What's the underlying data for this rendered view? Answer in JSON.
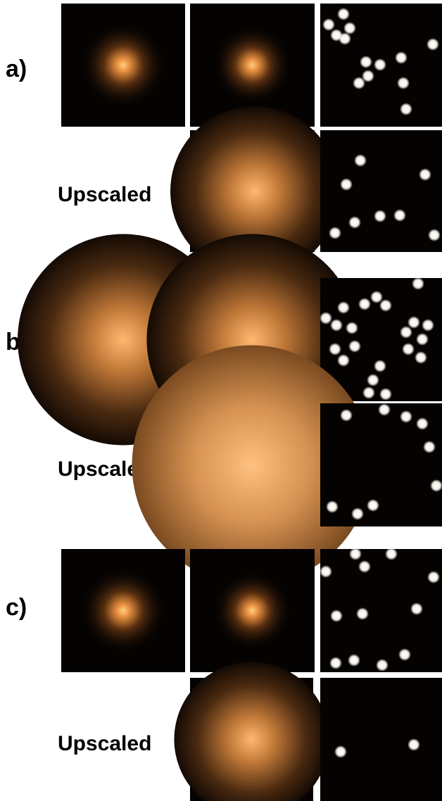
{
  "groups": [
    {
      "label": "a)",
      "upscaled_label": "Upscaled"
    },
    {
      "label": "b)",
      "upscaled_label": "Upscaled"
    },
    {
      "label": "c)",
      "upscaled_label": "Upscaled"
    }
  ]
}
